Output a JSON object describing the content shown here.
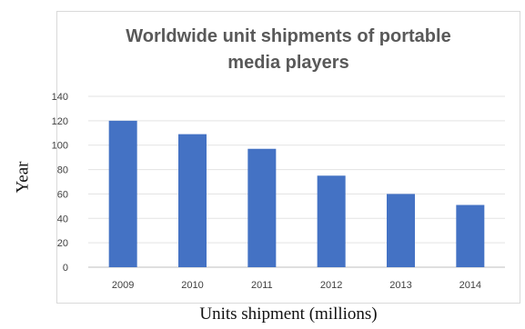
{
  "chart_data": {
    "type": "bar",
    "title": "Worldwide unit shipments of portable\nmedia players",
    "xlabel": "Units shipment (millions)",
    "ylabel": "Year",
    "categories": [
      "2009",
      "2010",
      "2011",
      "2012",
      "2013",
      "2014"
    ],
    "values": [
      120,
      109,
      97,
      75,
      60,
      51
    ],
    "ylim": [
      0,
      140
    ],
    "yticks": [
      0,
      20,
      40,
      60,
      80,
      100,
      120,
      140
    ],
    "grid": true,
    "bar_color": "#4472c4"
  }
}
